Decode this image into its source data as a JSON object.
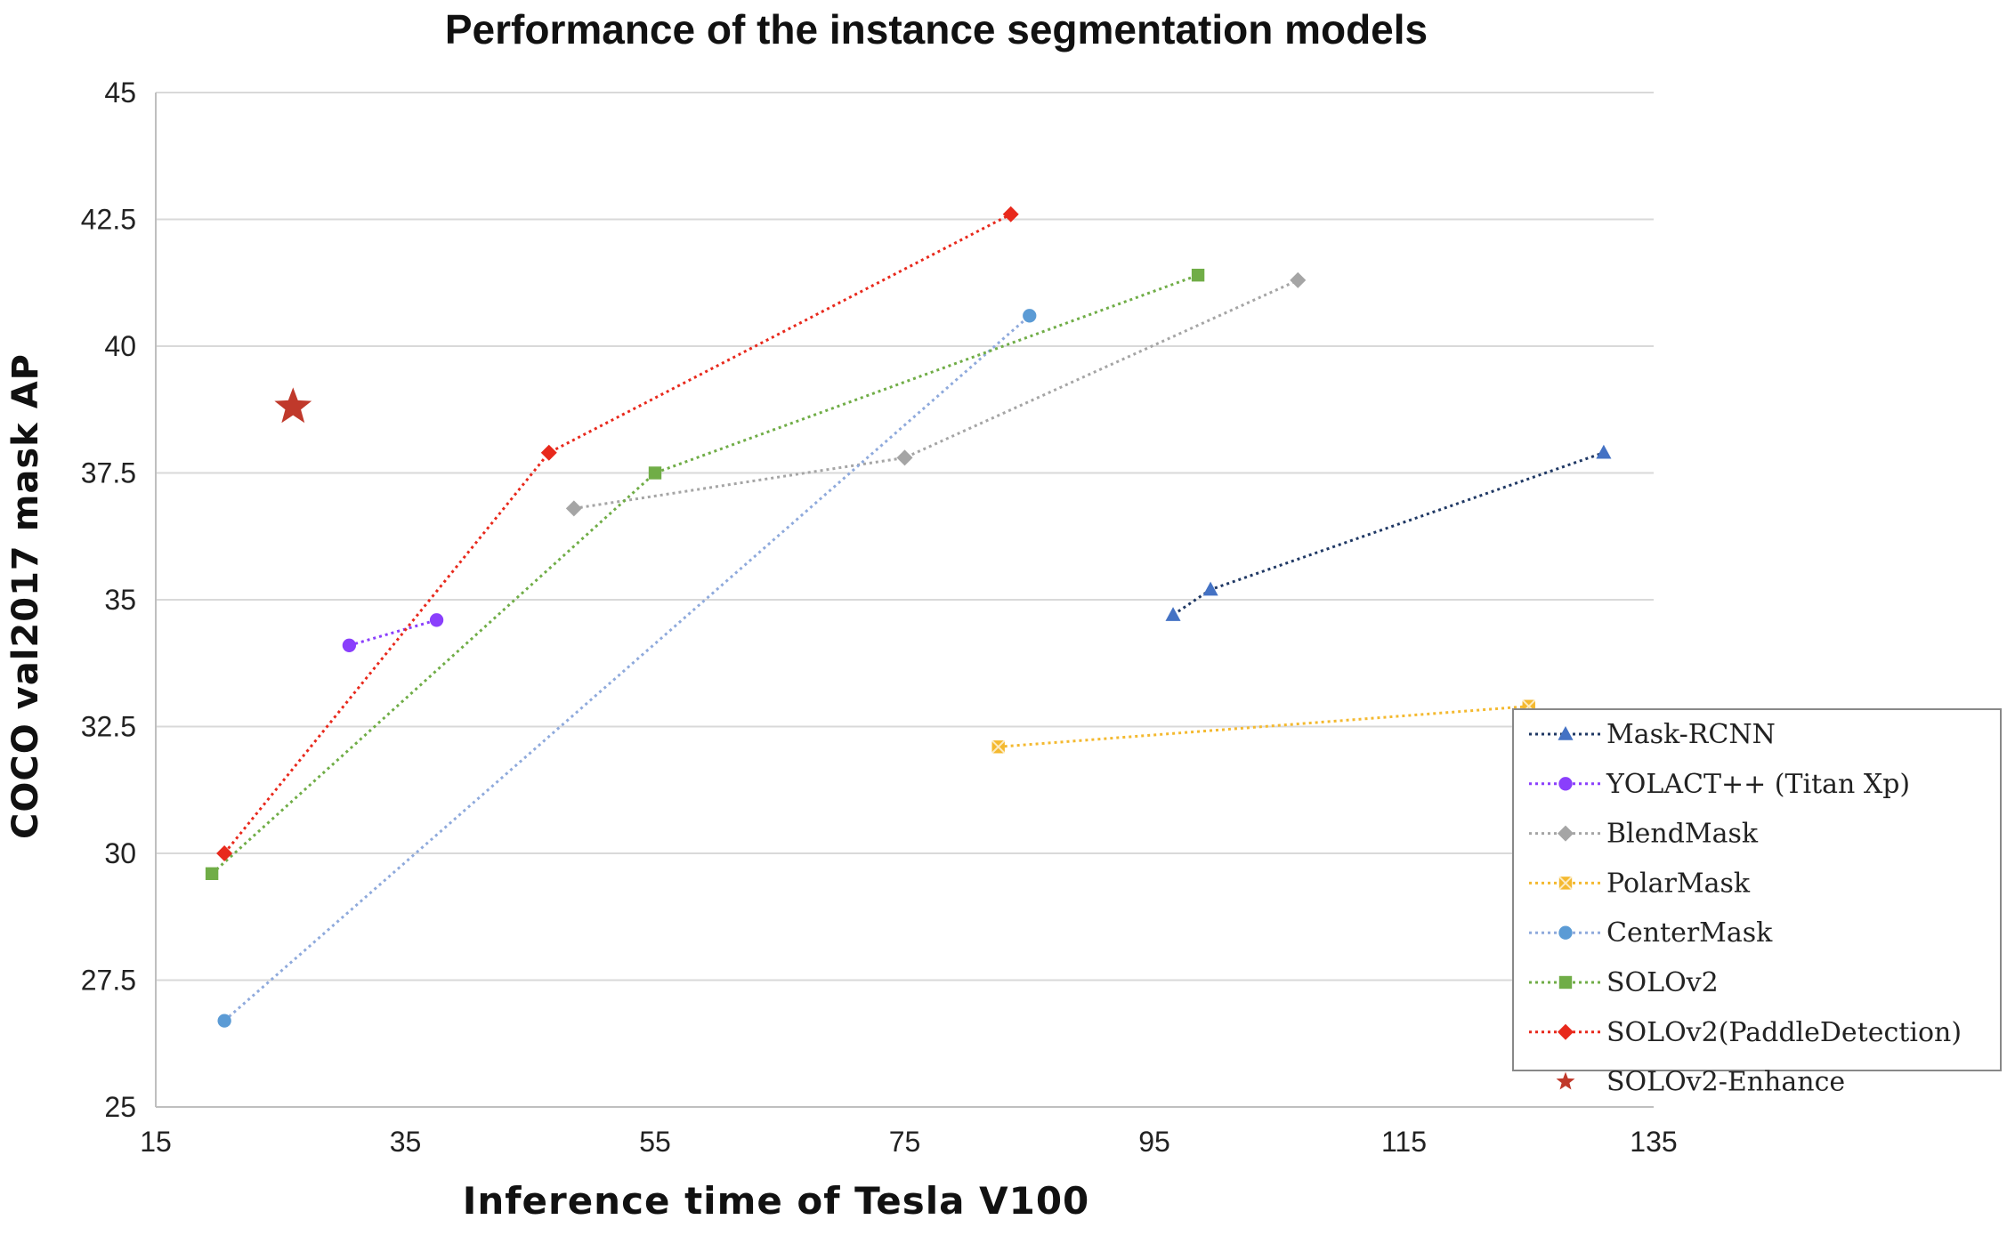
{
  "chart_data": {
    "type": "scatter",
    "title": "Performance of the instance segmentation models",
    "xlabel": "Inference time of Tesla V100",
    "ylabel": "COCO val2017 mask AP",
    "xlim": [
      15,
      135
    ],
    "ylim": [
      25,
      45
    ],
    "xticks": [
      15,
      35,
      55,
      75,
      95,
      115,
      135
    ],
    "yticks": [
      25,
      27.5,
      30,
      32.5,
      35,
      37.5,
      40,
      42.5,
      45
    ],
    "ytick_labels": [
      "25",
      "27.5",
      "30",
      "32.5",
      "35",
      "37.5",
      "40",
      "42.5",
      "45"
    ],
    "grid": "horizontal",
    "legend": "bottom-right",
    "series": [
      {
        "name": "Mask-RCNN",
        "marker": "triangle",
        "color": "#4472C4",
        "line_color": "#1F3864",
        "line": "dotted",
        "points": [
          [
            96.5,
            34.7
          ],
          [
            99.5,
            35.2
          ],
          [
            131,
            37.9
          ]
        ]
      },
      {
        "name": "YOLACT++ (Titan Xp)",
        "marker": "circle",
        "color": "#8A3FFC",
        "line_color": "#8A3FFC",
        "line": "dotted",
        "points": [
          [
            30.5,
            34.1
          ],
          [
            37.5,
            34.6
          ]
        ]
      },
      {
        "name": "BlendMask",
        "marker": "diamond",
        "color": "#A5A5A5",
        "line_color": "#A5A5A5",
        "line": "dotted",
        "points": [
          [
            48.5,
            36.8
          ],
          [
            75,
            37.8
          ],
          [
            106.5,
            41.3
          ]
        ]
      },
      {
        "name": "PolarMask",
        "marker": "square-x",
        "color": "#F4B92F",
        "line_color": "#F4B92F",
        "line": "dotted",
        "points": [
          [
            82.5,
            32.1
          ],
          [
            125,
            32.9
          ]
        ]
      },
      {
        "name": "CenterMask",
        "marker": "circle",
        "color": "#5B9BD5",
        "line_color": "#8FAADC",
        "line": "dotted",
        "points": [
          [
            20.5,
            26.7
          ],
          [
            85,
            40.6
          ]
        ]
      },
      {
        "name": "SOLOv2",
        "marker": "square",
        "color": "#70AD47",
        "line_color": "#70AD47",
        "line": "dotted",
        "points": [
          [
            19.5,
            29.6
          ],
          [
            55,
            37.5
          ],
          [
            98.5,
            41.4
          ]
        ]
      },
      {
        "name": "SOLOv2(PaddleDetection)",
        "marker": "diamond",
        "color": "#E8291C",
        "line_color": "#E8291C",
        "line": "dotted",
        "points": [
          [
            20.5,
            30.0
          ],
          [
            46.5,
            37.9
          ],
          [
            83.5,
            42.6
          ]
        ]
      },
      {
        "name": "SOLOv2-Enhance",
        "marker": "star",
        "color": "#C0392B",
        "line_color": "#C0392B",
        "line": "none",
        "points": [
          [
            26,
            38.8
          ]
        ]
      }
    ]
  }
}
